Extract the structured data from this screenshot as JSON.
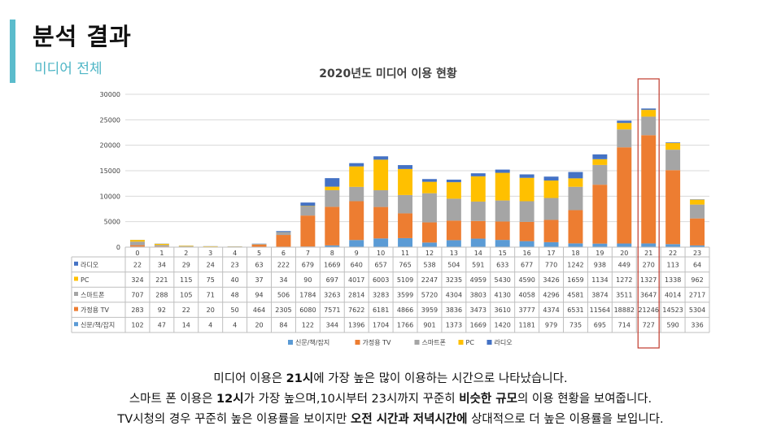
{
  "header": {
    "title": "분석 결과",
    "subtitle": "미디어 전체"
  },
  "colors": {
    "accent": "#5bbccc",
    "highlight_box": "#c0392b"
  },
  "chart_data": {
    "type": "bar",
    "stacked": true,
    "title": "2020년도 미디어 이용 현황",
    "xlabel": "",
    "ylabel": "",
    "ylim": [
      0,
      30000
    ],
    "yticks": [
      0,
      5000,
      10000,
      15000,
      20000,
      25000,
      30000
    ],
    "grid": true,
    "legend_position": "bottom",
    "highlight_category": "21",
    "categories": [
      "0",
      "1",
      "2",
      "3",
      "4",
      "5",
      "6",
      "7",
      "8",
      "9",
      "10",
      "11",
      "12",
      "13",
      "14",
      "15",
      "16",
      "17",
      "18",
      "19",
      "20",
      "21",
      "22",
      "23"
    ],
    "series": [
      {
        "name": "신문/책/잡지",
        "color": "#5b9bd5",
        "values": [
          102,
          47,
          14,
          4,
          4,
          20,
          84,
          122,
          344,
          1396,
          1704,
          1766,
          901,
          1373,
          1669,
          1420,
          1181,
          979,
          735,
          695,
          714,
          727,
          590,
          336
        ]
      },
      {
        "name": "가정용 TV",
        "color": "#ed7d31",
        "values": [
          283,
          92,
          22,
          20,
          50,
          464,
          2305,
          6080,
          7571,
          7622,
          6181,
          4866,
          3959,
          3836,
          3473,
          3610,
          3777,
          4374,
          6531,
          11564,
          18882,
          21246,
          14523,
          5304
        ]
      },
      {
        "name": "스마트폰",
        "color": "#a5a5a5",
        "values": [
          707,
          288,
          105,
          71,
          48,
          94,
          506,
          1784,
          3263,
          2814,
          3283,
          3599,
          5720,
          4304,
          3803,
          4130,
          4058,
          4296,
          4581,
          3874,
          3511,
          3647,
          4014,
          2717
        ]
      },
      {
        "name": "PC",
        "color": "#ffc000",
        "values": [
          324,
          221,
          115,
          75,
          40,
          37,
          34,
          90,
          697,
          4017,
          6003,
          5109,
          2247,
          3235,
          4959,
          5430,
          4590,
          3426,
          1659,
          1134,
          1272,
          1327,
          1338,
          962
        ]
      },
      {
        "name": "라디오",
        "color": "#4472c4",
        "values": [
          22,
          34,
          29,
          24,
          23,
          63,
          222,
          679,
          1669,
          640,
          657,
          765,
          538,
          504,
          591,
          633,
          677,
          770,
          1242,
          938,
          449,
          270,
          113,
          64
        ]
      }
    ]
  },
  "caption": {
    "line1": {
      "a": "미디어 이용은 ",
      "b": "21시",
      "c": "에 가장 높은 많이 이용하는 시간으로 나타났습니다."
    },
    "line2": {
      "a": "스마트 폰 이용은 ",
      "b": "12시",
      "c": "가 가장 높으며,10시부터 23시까지 꾸준히 ",
      "d": "비슷한 규모",
      "e": "의 이용 현황을 보여줍니다."
    },
    "line3": {
      "a": "TV시청의 경우 꾸준히 높은 이용률을 보이지만 ",
      "b": "오전 시간과 저녁시간에",
      "c": "  상대적으로 더 높은 이용률을 보입니다."
    }
  }
}
